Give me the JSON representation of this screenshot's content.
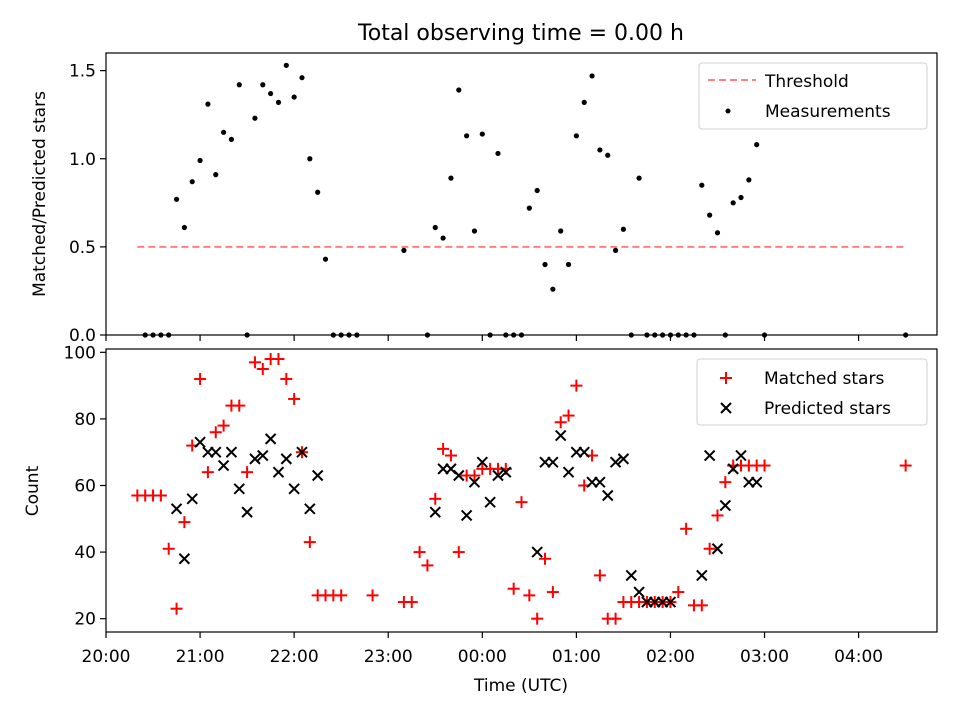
{
  "title": "Total observing time = 0.00 h",
  "chart_data": [
    {
      "type": "scatter",
      "panel": "top",
      "ylabel": "Matched/Predicted stars",
      "ylim": [
        0,
        1.6
      ],
      "yticks": [
        0.0,
        0.5,
        1.0,
        1.5
      ],
      "ytick_labels": [
        "0.0",
        "0.5",
        "1.0",
        "1.5"
      ],
      "legend_position": "top-right",
      "threshold": {
        "name": "Threshold",
        "value": 0.5,
        "x_start": "20:20",
        "x_end": "04:30",
        "color": "#ff7f7f"
      },
      "series": [
        {
          "name": "Measurements",
          "color": "#000000",
          "x": [
            "20:25",
            "20:30",
            "20:35",
            "20:40",
            "20:45",
            "20:50",
            "20:55",
            "21:00",
            "21:05",
            "21:10",
            "21:15",
            "21:20",
            "21:25",
            "21:30",
            "21:35",
            "21:40",
            "21:45",
            "21:50",
            "21:55",
            "22:00",
            "22:05",
            "22:10",
            "22:15",
            "22:20",
            "22:25",
            "22:30",
            "22:35",
            "22:40",
            "23:10",
            "23:25",
            "23:30",
            "23:35",
            "23:40",
            "23:45",
            "23:50",
            "23:55",
            "00:00",
            "00:05",
            "00:10",
            "00:15",
            "00:20",
            "00:25",
            "00:30",
            "00:35",
            "00:40",
            "00:45",
            "00:50",
            "00:55",
            "01:00",
            "01:05",
            "01:10",
            "01:15",
            "01:20",
            "01:25",
            "01:30",
            "01:35",
            "01:40",
            "01:45",
            "01:50",
            "01:55",
            "02:00",
            "02:05",
            "02:10",
            "02:15",
            "02:20",
            "02:25",
            "02:30",
            "02:35",
            "02:40",
            "02:45",
            "02:50",
            "02:55",
            "03:00",
            "04:30"
          ],
          "y": [
            0,
            0,
            0,
            0,
            0.77,
            0.61,
            0.87,
            0.99,
            1.31,
            0.91,
            1.15,
            1.11,
            1.42,
            0,
            1.23,
            1.42,
            1.37,
            1.32,
            1.53,
            1.35,
            1.46,
            1.0,
            0.81,
            0.43,
            0,
            0,
            0,
            0,
            0.48,
            0,
            0.61,
            0.55,
            0.89,
            1.39,
            1.13,
            0.59,
            1.14,
            0,
            1.03,
            0,
            0,
            0,
            0.72,
            0.82,
            0.4,
            0.26,
            0.59,
            0.4,
            1.13,
            1.32,
            1.47,
            1.05,
            1.02,
            0.48,
            0.6,
            0,
            0.89,
            0,
            0,
            0,
            0,
            0,
            0,
            0,
            0.85,
            0.68,
            0.58,
            0,
            0.75,
            0.78,
            0.88,
            1.08,
            0,
            0
          ]
        }
      ]
    },
    {
      "type": "scatter",
      "panel": "bottom",
      "xlabel": "Time (UTC)",
      "ylabel": "Count",
      "ylim": [
        16,
        101
      ],
      "yticks": [
        20,
        40,
        60,
        80,
        100
      ],
      "ytick_labels": [
        "20",
        "40",
        "60",
        "80",
        "100"
      ],
      "xlim": [
        "20:00",
        "04:50"
      ],
      "xticks": [
        "20:00",
        "21:00",
        "22:00",
        "23:00",
        "00:00",
        "01:00",
        "02:00",
        "03:00",
        "04:00"
      ],
      "legend_position": "top-right",
      "series": [
        {
          "name": "Matched stars",
          "marker": "+",
          "color": "#ff0000",
          "x": [
            "20:20",
            "20:25",
            "20:30",
            "20:35",
            "20:40",
            "20:45",
            "20:50",
            "20:55",
            "21:00",
            "21:05",
            "21:10",
            "21:15",
            "21:20",
            "21:25",
            "21:30",
            "21:35",
            "21:40",
            "21:45",
            "21:50",
            "21:55",
            "22:00",
            "22:05",
            "22:10",
            "22:15",
            "22:20",
            "22:25",
            "22:30",
            "22:50",
            "23:10",
            "23:15",
            "23:20",
            "23:25",
            "23:30",
            "23:35",
            "23:40",
            "23:45",
            "23:50",
            "23:55",
            "00:00",
            "00:05",
            "00:10",
            "00:15",
            "00:20",
            "00:25",
            "00:30",
            "00:35",
            "00:40",
            "00:45",
            "00:50",
            "00:55",
            "01:00",
            "01:05",
            "01:10",
            "01:15",
            "01:20",
            "01:25",
            "01:30",
            "01:35",
            "01:40",
            "01:45",
            "01:50",
            "01:55",
            "02:00",
            "02:05",
            "02:10",
            "02:15",
            "02:20",
            "02:25",
            "02:30",
            "02:35",
            "02:40",
            "02:45",
            "02:50",
            "02:55",
            "03:00",
            "04:30"
          ],
          "y": [
            57,
            57,
            57,
            57,
            41,
            23,
            49,
            72,
            92,
            64,
            76,
            78,
            84,
            84,
            64,
            97,
            95,
            98,
            98,
            92,
            86,
            70,
            43,
            27,
            27,
            27,
            27,
            27,
            25,
            25,
            40,
            36,
            56,
            71,
            69,
            40,
            63,
            63,
            65,
            65,
            65,
            65,
            29,
            55,
            27,
            20,
            38,
            28,
            79,
            81,
            90,
            60,
            69,
            33,
            20,
            20,
            25,
            25,
            25,
            25,
            25,
            25,
            25,
            28,
            47,
            24,
            24,
            41,
            51,
            61,
            66,
            66,
            66,
            66,
            66,
            66
          ],
          "x_note": ""
        },
        {
          "name": "Predicted stars",
          "marker": "x",
          "color": "#000000",
          "x": [
            "20:45",
            "20:50",
            "20:55",
            "21:00",
            "21:05",
            "21:10",
            "21:15",
            "21:20",
            "21:25",
            "21:30",
            "21:35",
            "21:40",
            "21:45",
            "21:50",
            "21:55",
            "22:00",
            "22:05",
            "22:10",
            "22:15",
            "23:30",
            "23:35",
            "23:40",
            "23:45",
            "23:50",
            "23:55",
            "00:00",
            "00:05",
            "00:10",
            "00:15",
            "00:35",
            "00:40",
            "00:45",
            "00:50",
            "00:55",
            "01:00",
            "01:05",
            "01:10",
            "01:15",
            "01:20",
            "01:25",
            "01:30",
            "01:35",
            "01:40",
            "01:45",
            "01:50",
            "01:55",
            "02:00",
            "02:20",
            "02:25",
            "02:30",
            "02:35",
            "02:40",
            "02:45",
            "02:50",
            "02:55"
          ],
          "y": [
            53,
            38,
            56,
            73,
            70,
            70,
            66,
            70,
            59,
            52,
            68,
            69,
            74,
            64,
            68,
            59,
            70,
            53,
            63,
            52,
            65,
            65,
            63,
            51,
            61,
            67,
            55,
            63,
            64,
            40,
            67,
            67,
            75,
            64,
            70,
            70,
            61,
            61,
            57,
            67,
            68,
            33,
            28,
            25,
            25,
            25,
            25,
            33,
            69,
            41,
            54,
            65,
            69,
            61,
            61
          ]
        }
      ]
    }
  ]
}
